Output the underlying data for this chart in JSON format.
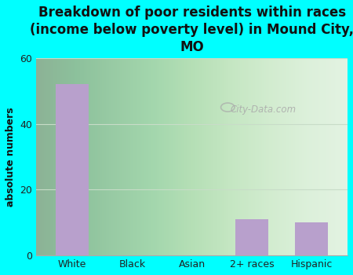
{
  "categories": [
    "White",
    "Black",
    "Asian",
    "2+ races",
    "Hispanic"
  ],
  "values": [
    52,
    0,
    0,
    11,
    10
  ],
  "bar_color": "#b8a0cc",
  "title": "Breakdown of poor residents within races\n(income below poverty level) in Mound City,\nMO",
  "ylabel": "absolute numbers",
  "ylim": [
    0,
    60
  ],
  "yticks": [
    0,
    20,
    40,
    60
  ],
  "background_color": "#00FFFF",
  "plot_bg_color": "#d8eed8",
  "grid_color": "#c8dcc8",
  "watermark_text": "City-Data.com",
  "title_fontsize": 12,
  "tick_fontsize": 9,
  "ylabel_fontsize": 9,
  "title_color": "#111111"
}
